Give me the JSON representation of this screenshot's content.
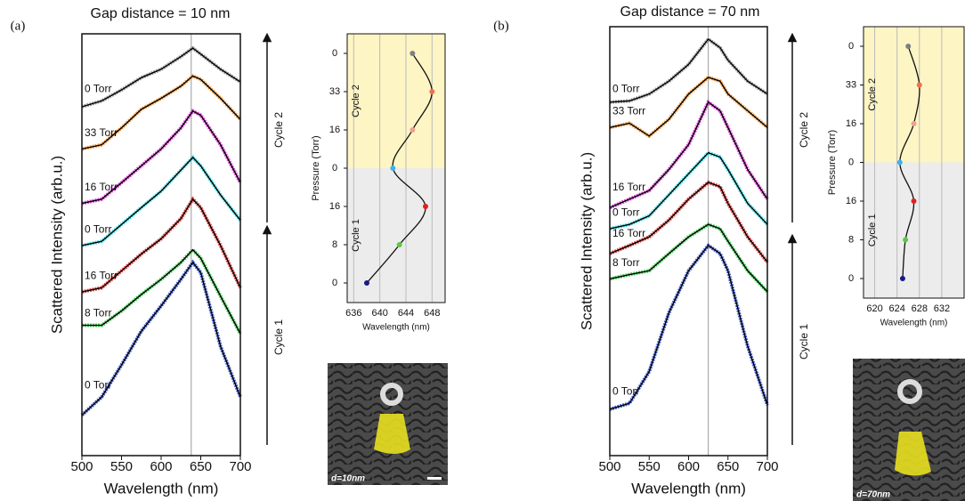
{
  "chart_data": [
    {
      "type": "line",
      "panel_label": "(a)",
      "title": "Gap distance = 10 nm",
      "xlabel": "Wavelength (nm)",
      "ylabel": "Scattered Intensity (arb.u.)",
      "x": [
        500,
        525,
        550,
        575,
        600,
        625,
        640,
        650,
        675,
        700
      ],
      "xlim": [
        500,
        700
      ],
      "xticks": [
        500,
        550,
        600,
        650,
        700
      ],
      "ylim": [
        0,
        100
      ],
      "vline": 638,
      "annotations": [
        "Cycle 1",
        "Cycle 2"
      ],
      "series": [
        {
          "name": "0 Torr",
          "color": "#1f3fd0",
          "values": [
            9.6,
            13.9,
            21.5,
            29.5,
            35.5,
            41.8,
            45.8,
            43.4,
            25.9,
            13.9
          ]
        },
        {
          "name": "8 Torr",
          "color": "#22c93a",
          "values": [
            30.9,
            30.9,
            34.3,
            38.2,
            41.8,
            45.8,
            48.8,
            46.8,
            37.8,
            28.9
          ]
        },
        {
          "name": "16 Torr",
          "color": "#e02020",
          "values": [
            38.8,
            39.8,
            43.8,
            47.8,
            51.4,
            56.2,
            60.8,
            58.8,
            49.8,
            39.8
          ]
        },
        {
          "name": "0 Torr",
          "color": "#20d8e0",
          "values": [
            49.8,
            50.8,
            54.8,
            58.8,
            62.7,
            67.7,
            70.7,
            68.7,
            61.8,
            55.8
          ]
        },
        {
          "name": "16 Torr",
          "color": "#e020d8",
          "values": [
            59.8,
            60.8,
            64.7,
            68.7,
            72.7,
            77.7,
            81.7,
            80.7,
            73.7,
            64.7
          ]
        },
        {
          "name": "33 Torr",
          "color": "#f08a20",
          "values": [
            72.7,
            73.7,
            77.7,
            82.1,
            84.7,
            87.6,
            90.0,
            89.2,
            84.7,
            79.7
          ]
        },
        {
          "name": "0 Torr",
          "color": "#888888",
          "values": [
            82.7,
            84.1,
            86.7,
            89.6,
            91.6,
            94.6,
            96.6,
            95.2,
            91.6,
            88.6
          ]
        }
      ]
    },
    {
      "type": "dot",
      "xlabel": "Wavelength (nm)",
      "ylabel": "Pressure (Torr)",
      "xlim": [
        635,
        650
      ],
      "xticks": [
        636,
        640,
        644,
        648
      ],
      "categories": [
        "0",
        "8",
        "16",
        "0",
        "16",
        "33",
        "0"
      ],
      "values": [
        638,
        643,
        647,
        642,
        645,
        648,
        645
      ],
      "colors": [
        "#1a1a8a",
        "#5cc840",
        "#e02020",
        "#40b0f0",
        "#f0a090",
        "#f07050",
        "#808080"
      ],
      "region_labels": [
        "Cycle 1",
        "Cycle 2"
      ],
      "image_label": "d=10nm"
    },
    {
      "type": "line",
      "panel_label": "(b)",
      "title": "Gap distance = 70 nm",
      "xlabel": "Wavelength (nm)",
      "ylabel": "Scattered Intensity (arb.u.)",
      "x": [
        500,
        525,
        550,
        575,
        600,
        625,
        640,
        650,
        675,
        700
      ],
      "xlim": [
        500,
        700
      ],
      "xticks": [
        500,
        550,
        600,
        650,
        700
      ],
      "ylim": [
        0,
        100
      ],
      "vline": 625,
      "annotations": [
        "Cycle 1",
        "Cycle 2"
      ],
      "series": [
        {
          "name": "0 Torr",
          "color": "#1f3fd0",
          "values": [
            10.8,
            12.2,
            19.6,
            33.3,
            43.1,
            49.0,
            47.1,
            43.1,
            25.5,
            11.8
          ]
        },
        {
          "name": "8 Torr",
          "color": "#22c93a",
          "values": [
            41.2,
            42.2,
            43.1,
            47.1,
            51.0,
            53.9,
            52.9,
            50.0,
            43.1,
            38.2
          ]
        },
        {
          "name": "16 Torr",
          "color": "#e02020",
          "values": [
            47.1,
            49.0,
            51.0,
            54.9,
            59.8,
            63.7,
            62.7,
            58.8,
            51.0,
            45.1
          ]
        },
        {
          "name": "0 Torr",
          "color": "#20d8e0",
          "values": [
            52.9,
            53.9,
            55.9,
            60.8,
            65.7,
            70.6,
            69.6,
            66.7,
            58.8,
            53.9
          ]
        },
        {
          "name": "16 Torr",
          "color": "#e020d8",
          "values": [
            57.8,
            59.8,
            61.8,
            66.7,
            72.5,
            82.4,
            80.4,
            76.5,
            66.7,
            59.8
          ]
        },
        {
          "name": "33 Torr",
          "color": "#f08a20",
          "values": [
            76.5,
            77.5,
            74.5,
            78.4,
            84.3,
            88.2,
            87.3,
            84.3,
            80.4,
            76.5
          ]
        },
        {
          "name": "0 Torr",
          "color": "#888888",
          "values": [
            82.4,
            82.7,
            84.3,
            87.3,
            91.2,
            97.1,
            95.1,
            92.2,
            87.3,
            84.3
          ]
        }
      ]
    },
    {
      "type": "dot",
      "xlabel": "Wavelength (nm)",
      "ylabel": "Pressure (Torr)",
      "xlim": [
        618,
        636
      ],
      "xticks": [
        620,
        624,
        628,
        632
      ],
      "categories": [
        "0",
        "8",
        "16",
        "0",
        "16",
        "33",
        "0"
      ],
      "values": [
        625,
        625.5,
        627,
        624.5,
        627,
        628,
        626
      ],
      "colors": [
        "#1a1a8a",
        "#5cc840",
        "#e02020",
        "#40b0f0",
        "#f0a090",
        "#f07050",
        "#808080"
      ],
      "region_labels": [
        "Cycle 1",
        "Cycle 2"
      ],
      "image_label": "d=70nm"
    }
  ]
}
